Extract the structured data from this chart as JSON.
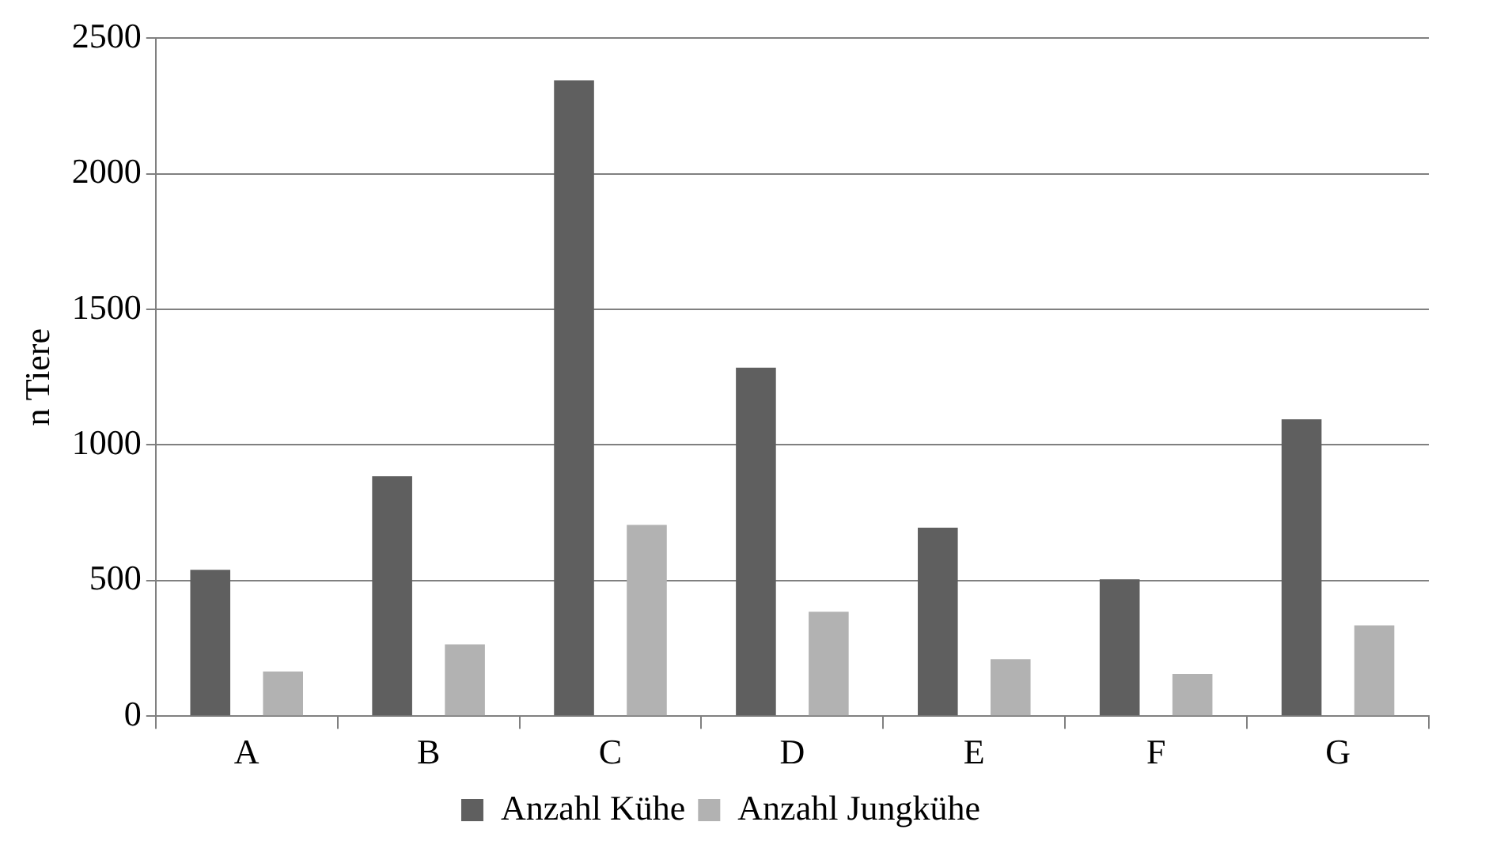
{
  "chart_data": {
    "type": "bar",
    "ylabel": "n Tiere",
    "categories": [
      "A",
      "B",
      "C",
      "D",
      "E",
      "F",
      "G"
    ],
    "series": [
      {
        "name": "Anzahl Kühe",
        "color": "#5f5f5f",
        "values": [
          540,
          885,
          2345,
          1285,
          695,
          505,
          1095
        ]
      },
      {
        "name": "Anzahl Jungkühe",
        "color": "#b2b2b2",
        "values": [
          165,
          265,
          705,
          385,
          210,
          155,
          335
        ]
      }
    ],
    "ylim": [
      0,
      2500
    ],
    "yticks": [
      0,
      500,
      1000,
      1500,
      2000,
      2500
    ],
    "grid": "y",
    "legend": "bottom"
  }
}
